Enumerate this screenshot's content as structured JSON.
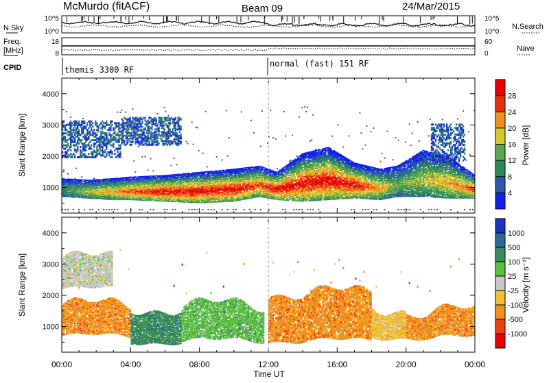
{
  "header": {
    "station": "McMurdo (fitACF)",
    "beam": "Beam 09",
    "date": "24/Mar/2015"
  },
  "side_labels": {
    "nsky": "N.Sky",
    "nsearch": "N.Search",
    "freq": "Freq.",
    "freq_unit": "[MHz]",
    "nave": "Nave",
    "cpid": "CPID"
  },
  "status_panel": {
    "noise_ticks_left": [
      "10^5",
      "10^0"
    ],
    "noise_ticks_right": [
      "10^5",
      "10^0"
    ],
    "freq_ticks_left": [
      "18",
      "8"
    ],
    "nave_ticks_right": [
      "60",
      "0"
    ],
    "cpid_segments": [
      {
        "label": "themis 3300 RF",
        "start_hour": 0
      },
      {
        "label": "normal (fast) 151 RF",
        "start_hour": 12
      }
    ]
  },
  "chart_data": [
    {
      "type": "heatmap",
      "quantity": "Power",
      "ylabel": "Slant Range [km]",
      "xlabel": "Time UT",
      "x_ticks": [
        "00:00",
        "04:00",
        "08:00",
        "12:00",
        "16:00",
        "20:00",
        "00:00"
      ],
      "xlim_hours": [
        0,
        24
      ],
      "y_ticks": [
        1000,
        2000,
        3000,
        4000
      ],
      "ylim_km": [
        180,
        4500
      ],
      "colorbar": {
        "label": "Power [dB]",
        "ticks": [
          "4",
          "8",
          "12",
          "16",
          "20",
          "24",
          "28"
        ],
        "colors": [
          "#1020e8",
          "#2a5aa8",
          "#2e8a5a",
          "#5aa84a",
          "#d8c830",
          "#f09020",
          "#e83010",
          "#e80000"
        ]
      },
      "echo_band": [
        {
          "h": 0.0,
          "lo": 700,
          "hi": 1300,
          "peak": 2
        },
        {
          "h": 1.5,
          "lo": 650,
          "hi": 1250,
          "peak": 4
        },
        {
          "h": 3.0,
          "lo": 600,
          "hi": 1300,
          "peak": 5
        },
        {
          "h": 4.0,
          "lo": 600,
          "hi": 1350,
          "peak": 6
        },
        {
          "h": 6.0,
          "lo": 550,
          "hi": 1400,
          "peak": 7
        },
        {
          "h": 8.0,
          "lo": 500,
          "hi": 1500,
          "peak": 7
        },
        {
          "h": 10.0,
          "lo": 550,
          "hi": 1600,
          "peak": 7
        },
        {
          "h": 11.5,
          "lo": 700,
          "hi": 1700,
          "peak": 6
        },
        {
          "h": 12.5,
          "lo": 600,
          "hi": 1500,
          "peak": 7
        },
        {
          "h": 14.0,
          "lo": 550,
          "hi": 2100,
          "peak": 7
        },
        {
          "h": 15.5,
          "lo": 600,
          "hi": 2300,
          "peak": 7
        },
        {
          "h": 17.0,
          "lo": 650,
          "hi": 1800,
          "peak": 7
        },
        {
          "h": 18.5,
          "lo": 600,
          "hi": 1600,
          "peak": 5
        },
        {
          "h": 19.5,
          "lo": 700,
          "hi": 1700,
          "peak": 3
        },
        {
          "h": 21.0,
          "lo": 700,
          "hi": 2200,
          "peak": 4
        },
        {
          "h": 22.5,
          "lo": 650,
          "hi": 2000,
          "peak": 5
        },
        {
          "h": 24.0,
          "lo": 650,
          "hi": 1400,
          "peak": 6
        }
      ],
      "upper_patches": [
        {
          "h0": 0.0,
          "h1": 3.5,
          "lo": 2000,
          "hi": 3200,
          "peak": 1
        },
        {
          "h0": 3.5,
          "h1": 7.0,
          "lo": 2400,
          "hi": 3300,
          "peak": 1
        },
        {
          "h0": 21.5,
          "h1": 23.5,
          "lo": 1900,
          "hi": 3100,
          "peak": 1
        }
      ]
    },
    {
      "type": "heatmap",
      "quantity": "Velocity",
      "ylabel": "Slant Range [km]",
      "xlabel": "Time UT",
      "x_ticks": [
        "00:00",
        "04:00",
        "08:00",
        "12:00",
        "16:00",
        "20:00",
        "00:00"
      ],
      "xlim_hours": [
        0,
        24
      ],
      "y_ticks": [
        1000,
        2000,
        3000,
        4000
      ],
      "ylim_km": [
        180,
        4500
      ],
      "colorbar": {
        "label": "Velocity [m s⁻¹]",
        "ticks": [
          "1000",
          "500",
          "100",
          "25",
          "-25",
          "-100",
          "-500",
          "-1000"
        ],
        "colors": [
          "#2030c0",
          "#2a6a9a",
          "#3a8a5a",
          "#5ac040",
          "#c8c8c8",
          "#f0c030",
          "#f09020",
          "#e84010",
          "#e80000"
        ]
      },
      "echo_regions": [
        {
          "h0": 0.0,
          "h1": 4.0,
          "lo": 700,
          "hi": 1700,
          "color_index": 6
        },
        {
          "h0": 4.0,
          "h1": 7.0,
          "lo": 500,
          "hi": 1600,
          "color_index": 2
        },
        {
          "h0": 7.0,
          "h1": 11.8,
          "lo": 550,
          "hi": 1700,
          "color_index": 3
        },
        {
          "h0": 12.0,
          "h1": 18.0,
          "lo": 550,
          "hi": 2100,
          "color_index": 6
        },
        {
          "h0": 18.0,
          "h1": 20.0,
          "lo": 650,
          "hi": 1600,
          "color_index": 5
        },
        {
          "h0": 20.0,
          "h1": 24.0,
          "lo": 650,
          "hi": 1500,
          "color_index": 6
        },
        {
          "h0": 0.0,
          "h1": 3.0,
          "lo": 2200,
          "hi": 3200,
          "color_index": 4
        }
      ]
    }
  ]
}
